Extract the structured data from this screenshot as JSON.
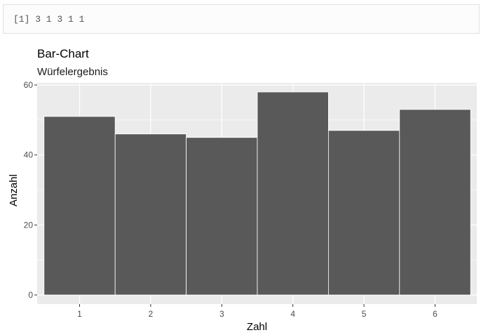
{
  "console": {
    "output": "[1] 3 1 3 1 1"
  },
  "chart_data": {
    "type": "bar",
    "title": "Bar-Chart",
    "subtitle": "Würfelergebnis",
    "xlabel": "Zahl",
    "ylabel": "Anzahl",
    "categories": [
      "1",
      "2",
      "3",
      "4",
      "5",
      "6"
    ],
    "values": [
      51,
      46,
      45,
      58,
      47,
      53
    ],
    "ylim": [
      0,
      60
    ],
    "yticks": [
      0,
      20,
      40,
      60
    ],
    "grid": true,
    "colors": {
      "bar": "#595959",
      "panel": "#ebebeb",
      "grid": "#ffffff"
    }
  }
}
